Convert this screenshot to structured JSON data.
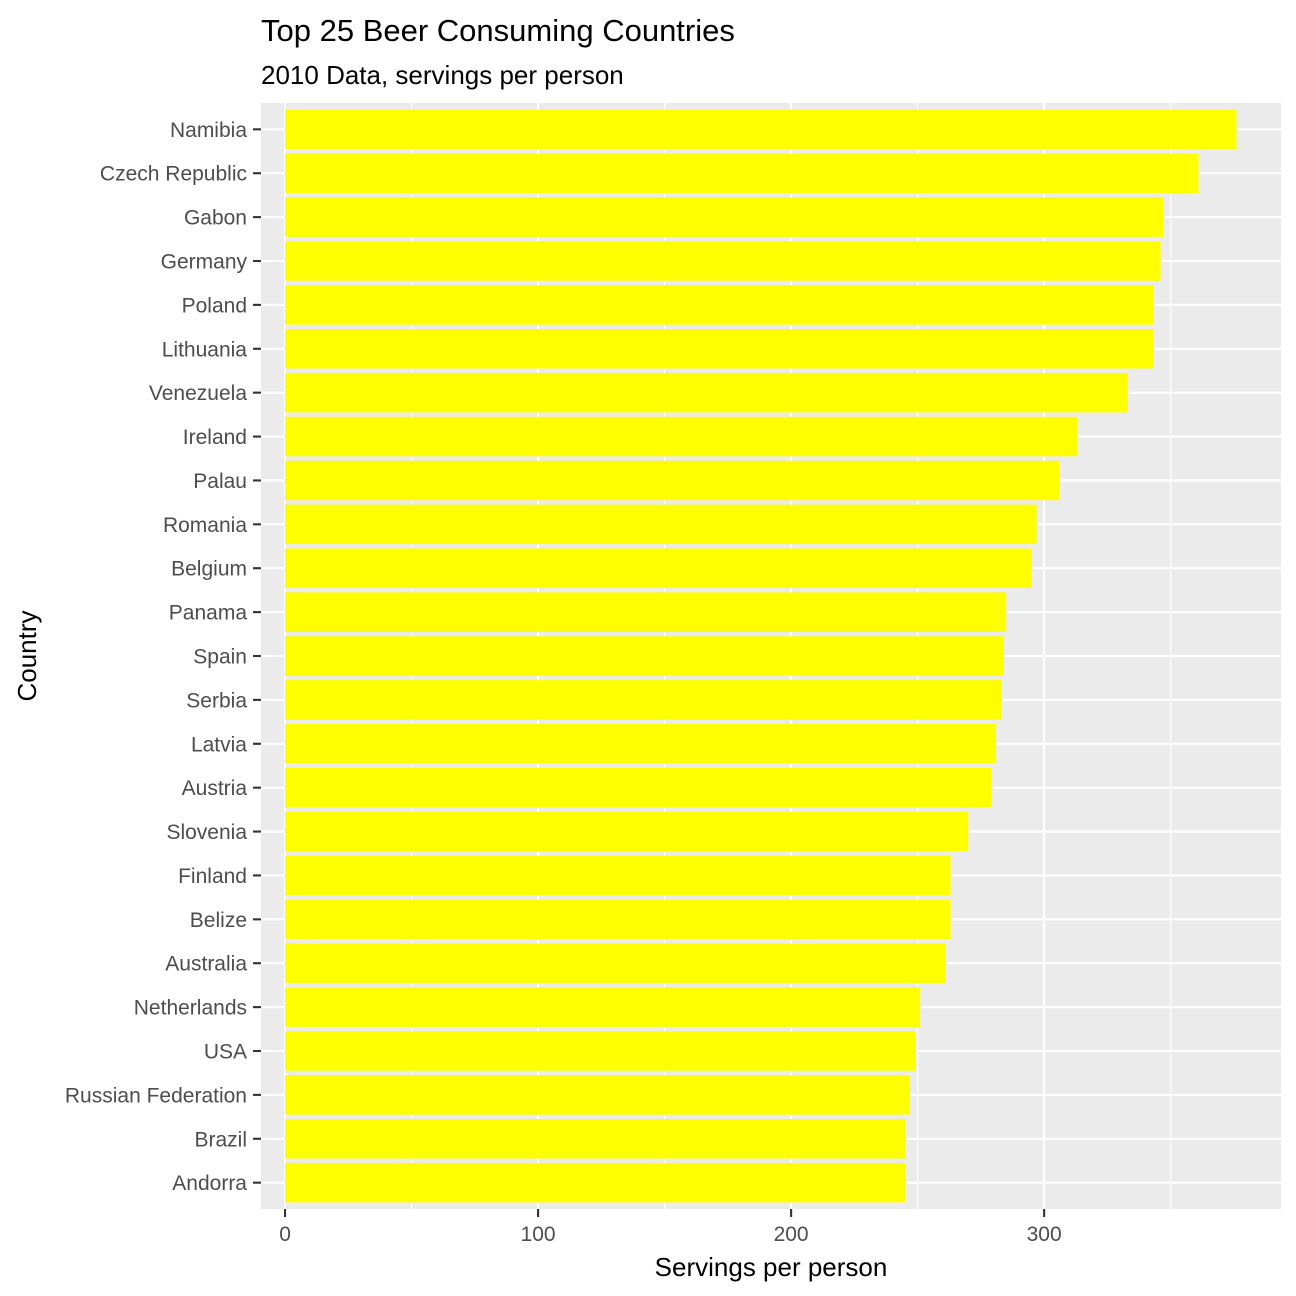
{
  "chart_data": {
    "type": "bar",
    "orientation": "horizontal",
    "title": "Top 25 Beer Consuming Countries",
    "subtitle": "2010 Data, servings per person",
    "xlabel": "Servings per person",
    "ylabel": "Country",
    "xlim": [
      -9.5,
      393.6
    ],
    "xticks": [
      0,
      100,
      200,
      300
    ],
    "categories": [
      "Namibia",
      "Czech Republic",
      "Gabon",
      "Germany",
      "Poland",
      "Lithuania",
      "Venezuela",
      "Ireland",
      "Palau",
      "Romania",
      "Belgium",
      "Panama",
      "Spain",
      "Serbia",
      "Latvia",
      "Austria",
      "Slovenia",
      "Finland",
      "Belize",
      "Australia",
      "Netherlands",
      "USA",
      "Russian Federation",
      "Brazil",
      "Andorra"
    ],
    "values": [
      376,
      361,
      347,
      346,
      343,
      343,
      333,
      313,
      306,
      297,
      295,
      285,
      284,
      283,
      281,
      279,
      270,
      263,
      263,
      261,
      251,
      249,
      247,
      245,
      245
    ],
    "bar_color": "#ffff00",
    "panel_color": "#ebebeb",
    "grid": true,
    "legend": "none"
  }
}
